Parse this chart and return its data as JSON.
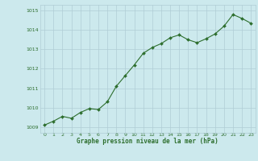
{
  "x": [
    0,
    1,
    2,
    3,
    4,
    5,
    6,
    7,
    8,
    9,
    10,
    11,
    12,
    13,
    14,
    15,
    16,
    17,
    18,
    19,
    20,
    21,
    22,
    23
  ],
  "y": [
    1009.1,
    1009.3,
    1009.55,
    1009.45,
    1009.75,
    1009.95,
    1009.9,
    1010.3,
    1011.1,
    1011.65,
    1012.2,
    1012.8,
    1013.1,
    1013.3,
    1013.6,
    1013.75,
    1013.5,
    1013.35,
    1013.55,
    1013.8,
    1014.2,
    1014.8,
    1014.6,
    1014.35
  ],
  "line_color": "#2d6e2d",
  "marker_color": "#2d6e2d",
  "bg_color": "#cce9ed",
  "grid_color": "#b0cdd5",
  "axis_label_color": "#2d6e2d",
  "title": "Graphe pression niveau de la mer (hPa)",
  "ylim_min": 1008.7,
  "ylim_max": 1015.3,
  "yticks": [
    1009,
    1010,
    1011,
    1012,
    1013,
    1014,
    1015
  ],
  "xlim_min": -0.5,
  "xlim_max": 23.5,
  "xticks": [
    0,
    1,
    2,
    3,
    4,
    5,
    6,
    7,
    8,
    9,
    10,
    11,
    12,
    13,
    14,
    15,
    16,
    17,
    18,
    19,
    20,
    21,
    22,
    23
  ]
}
